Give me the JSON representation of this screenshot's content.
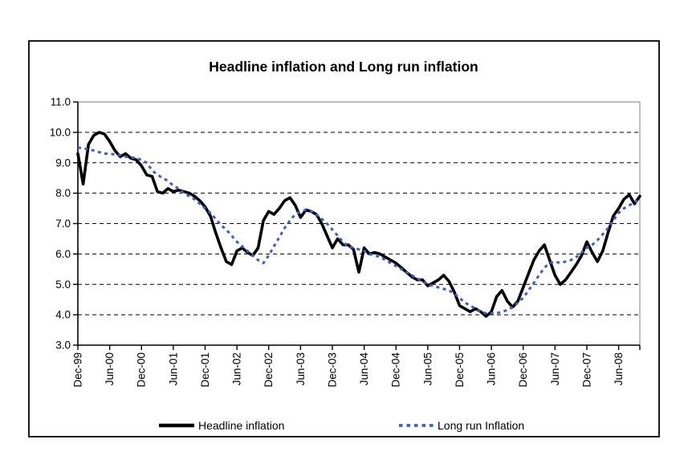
{
  "chart": {
    "title": "Headline inflation and Long run inflation",
    "legend": [
      {
        "label": "Headline inflation",
        "color": "#000000",
        "style": "solid"
      },
      {
        "label": "Long run Inflation",
        "color": "#3a5ecf",
        "style": "dashed"
      }
    ]
  },
  "chart_data": {
    "type": "line",
    "title": "Headline inflation and Long run inflation",
    "xlabel": "",
    "ylabel": "",
    "ylim": [
      3.0,
      11.0
    ],
    "y_ticks": [
      3.0,
      4.0,
      5.0,
      6.0,
      7.0,
      8.0,
      9.0,
      10.0,
      11.0
    ],
    "grid": "horizontal-dashed",
    "legend_position": "bottom",
    "frequency": "monthly",
    "x_start": "Dec-99",
    "x_end": "Oct-08",
    "x_tick_labels": [
      "Dec-99",
      "Jun-00",
      "Dec-00",
      "Jun-01",
      "Dec-01",
      "Jun-02",
      "Dec-02",
      "Jun-03",
      "Dec-03",
      "Jun-04",
      "Dec-04",
      "Jun-05",
      "Dec-05",
      "Jun-06",
      "Dec-06",
      "Jun-07",
      "Dec-07",
      "Jun-08"
    ],
    "x_tick_months": [
      0,
      6,
      12,
      18,
      24,
      30,
      36,
      42,
      48,
      54,
      60,
      66,
      72,
      78,
      84,
      90,
      96,
      102
    ],
    "series": [
      {
        "name": "Headline inflation",
        "color": "#000000",
        "dash": null,
        "width": 3.6,
        "values": [
          9.3,
          8.3,
          9.6,
          9.9,
          10.0,
          9.95,
          9.7,
          9.4,
          9.2,
          9.3,
          9.15,
          9.1,
          8.9,
          8.6,
          8.55,
          8.05,
          8.0,
          8.15,
          8.05,
          8.1,
          8.05,
          8.0,
          7.9,
          7.75,
          7.55,
          7.25,
          6.7,
          6.2,
          5.75,
          5.65,
          6.1,
          6.2,
          6.05,
          5.95,
          6.2,
          7.1,
          7.4,
          7.3,
          7.5,
          7.75,
          7.85,
          7.6,
          7.2,
          7.45,
          7.4,
          7.3,
          7.0,
          6.6,
          6.2,
          6.5,
          6.3,
          6.3,
          6.15,
          5.4,
          6.2,
          6.0,
          6.05,
          6.0,
          5.9,
          5.8,
          5.7,
          5.55,
          5.4,
          5.25,
          5.15,
          5.15,
          4.95,
          5.05,
          5.15,
          5.3,
          5.1,
          4.75,
          4.3,
          4.2,
          4.1,
          4.2,
          4.1,
          3.95,
          4.1,
          4.6,
          4.8,
          4.45,
          4.25,
          4.45,
          4.9,
          5.35,
          5.8,
          6.1,
          6.3,
          5.8,
          5.3,
          5.0,
          5.15,
          5.4,
          5.65,
          5.95,
          6.4,
          6.05,
          5.75,
          6.1,
          6.7,
          7.25,
          7.5,
          7.8,
          7.95,
          7.65,
          7.9
        ]
      },
      {
        "name": "Long run Inflation",
        "color": "#3a5ecf",
        "dash": [
          4,
          4.5
        ],
        "width": 3,
        "values": [
          9.5,
          9.47,
          9.45,
          9.4,
          9.35,
          9.3,
          9.3,
          9.27,
          9.25,
          9.2,
          9.18,
          9.15,
          9.1,
          9.0,
          8.75,
          8.6,
          8.5,
          8.4,
          8.25,
          8.15,
          8.0,
          7.9,
          7.8,
          7.65,
          7.5,
          7.35,
          7.15,
          6.95,
          6.8,
          6.6,
          6.4,
          6.25,
          6.1,
          5.95,
          5.8,
          5.7,
          5.95,
          6.25,
          6.55,
          6.85,
          7.1,
          7.3,
          7.4,
          7.45,
          7.4,
          7.3,
          7.15,
          7.0,
          6.8,
          6.6,
          6.4,
          6.25,
          6.2,
          6.15,
          6.1,
          6.0,
          5.95,
          5.9,
          5.8,
          5.7,
          5.6,
          5.5,
          5.4,
          5.3,
          5.2,
          5.1,
          5.0,
          4.95,
          4.9,
          4.85,
          4.8,
          4.7,
          4.55,
          4.4,
          4.3,
          4.2,
          4.1,
          4.05,
          4.05,
          4.05,
          4.1,
          4.15,
          4.25,
          4.4,
          4.55,
          4.8,
          5.05,
          5.3,
          5.55,
          5.7,
          5.75,
          5.7,
          5.75,
          5.8,
          5.9,
          6.05,
          6.2,
          6.3,
          6.45,
          6.65,
          6.85,
          7.1,
          7.35,
          7.5,
          7.6,
          7.7,
          7.8
        ]
      }
    ],
    "colors": {
      "gridline": "#000000",
      "plot_border_gray": "#a6a6a6",
      "outer_border": "#000000",
      "background": "#ffffff"
    }
  }
}
